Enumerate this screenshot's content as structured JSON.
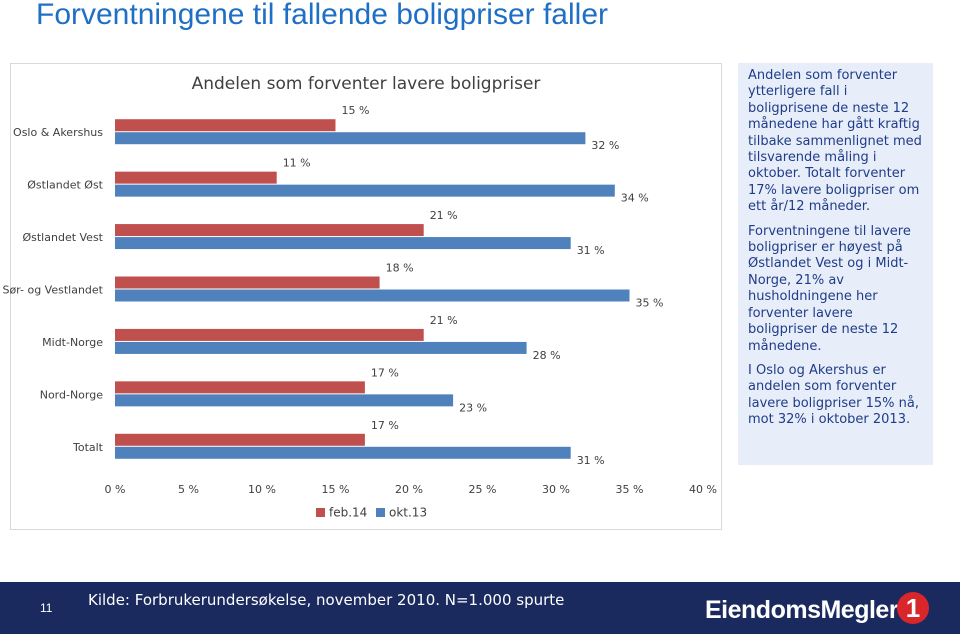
{
  "slide_title": "Forventningene til fallende boligpriser faller",
  "chart_data": {
    "type": "hbar",
    "title": "Andelen som forventer lavere boligpriser",
    "categories": [
      "Oslo & Akershus",
      "Østlandet Øst",
      "Østlandet Vest",
      "Sør- og Vestlandet",
      "Midt-Norge",
      "Nord-Norge",
      "Totalt"
    ],
    "series": [
      {
        "name": "feb.14",
        "color": "#c0504d",
        "values": [
          15,
          11,
          21,
          18,
          21,
          17,
          17
        ],
        "value_labels": [
          "15 %",
          "11 %",
          "21 %",
          "18 %",
          "21 %",
          "17 %",
          "17 %"
        ]
      },
      {
        "name": "okt.13",
        "color": "#4f81bd",
        "values": [
          32,
          34,
          31,
          35,
          28,
          23,
          31
        ],
        "value_labels": [
          "32 %",
          "34 %",
          "31 %",
          "35 %",
          "28 %",
          "23 %",
          "31 %"
        ]
      }
    ],
    "xlim": [
      0,
      40
    ],
    "xticks": [
      {
        "value": 0,
        "label": "0 %"
      },
      {
        "value": 5,
        "label": "5 %"
      },
      {
        "value": 10,
        "label": "10 %"
      },
      {
        "value": 15,
        "label": "15 %"
      },
      {
        "value": 20,
        "label": "20 %"
      },
      {
        "value": 25,
        "label": "25 %"
      },
      {
        "value": 30,
        "label": "30 %"
      },
      {
        "value": 35,
        "label": "35 %"
      },
      {
        "value": 40,
        "label": "40 %"
      }
    ],
    "grid": false,
    "legend": "bottom"
  },
  "text_box": [
    "Andelen som forventer ytterligere fall i boligprisene de neste 12 månedene har gått kraftig tilbake sammenlignet med tilsvarende måling i oktober. Totalt forventer 17% lavere boligpriser om ett år/12 måneder.",
    "Forventningene til lavere boligpriser er høyest på Østlandet Vest og i Midt-Norge, 21% av husholdningene her forventer lavere boligpriser de neste 12 månedene.",
    "I Oslo og Akershus er andelen som forventer lavere boligpriser 15% nå, mot 32% i oktober 2013."
  ],
  "footer": {
    "page_number": "11",
    "source": "Kilde: Forbrukerundersøkelse, november 2010. N=1.000 spurte",
    "logo_text": "EiendomsMegler",
    "logo_number": "1"
  }
}
